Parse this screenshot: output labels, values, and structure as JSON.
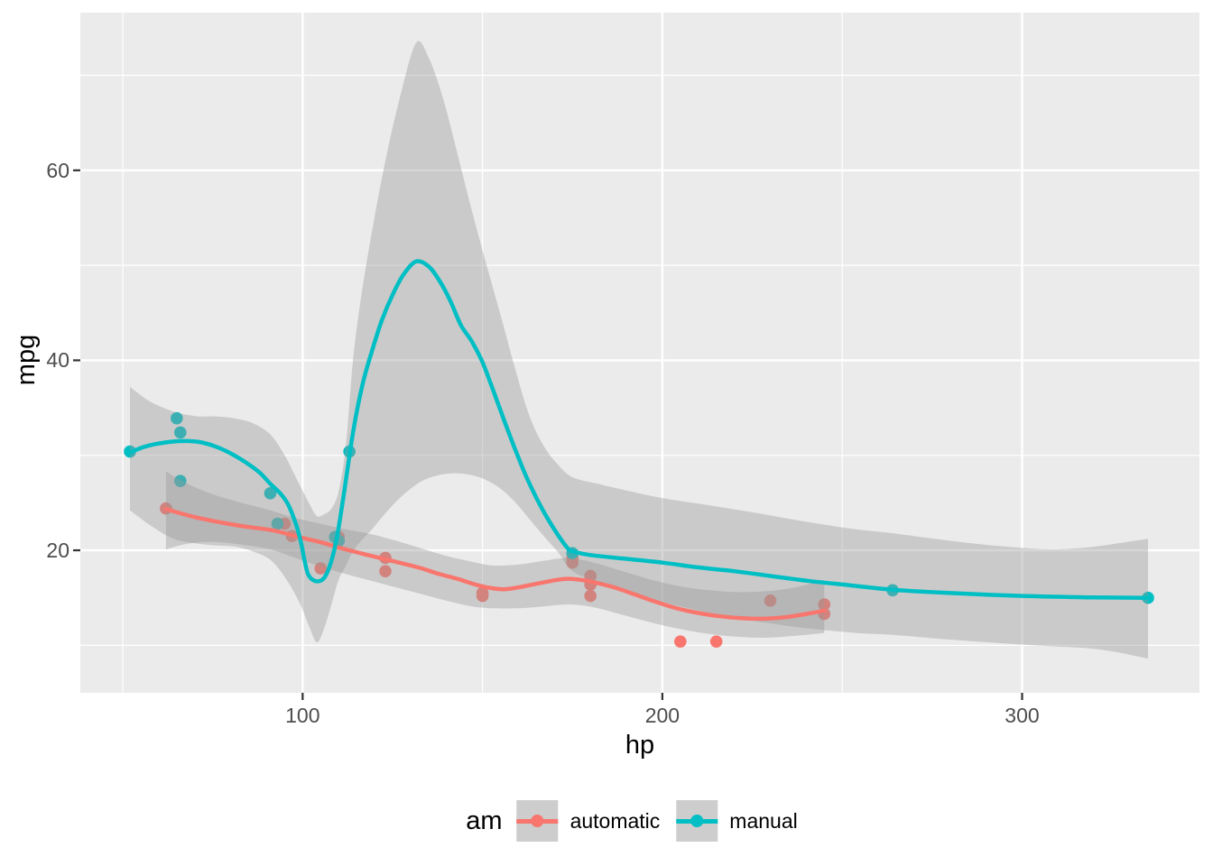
{
  "chart_data": {
    "type": "scatter",
    "title": "",
    "xlabel": "hp",
    "ylabel": "mpg",
    "legend_title": "am",
    "x_domain": [
      38.2,
      349.3
    ],
    "y_domain": [
      5.0,
      76.6
    ],
    "x_ticks": [
      100,
      200,
      300
    ],
    "x_minor_ticks": [
      50,
      150,
      250
    ],
    "y_ticks": [
      20,
      40,
      60
    ],
    "y_minor_ticks": [
      10,
      30,
      50,
      70
    ],
    "grid": "on",
    "legend_position": "bottom",
    "style": {
      "panel_bg": "#EBEBEB",
      "grid_color": "#FFFFFF",
      "ribbon_fill": "#999999",
      "ribbon_opacity": 0.4,
      "tick_mark_color": "#333333",
      "tick_text_color": "#4D4D4D",
      "title_text_color": "#000000",
      "legend_key_bg": "#CDCDCD"
    },
    "series": [
      {
        "name": "automatic",
        "color": "#F8766D",
        "points": [
          [
            62,
            24.4
          ],
          [
            95,
            22.8
          ],
          [
            97,
            21.5
          ],
          [
            105,
            18.1
          ],
          [
            110,
            21.4
          ],
          [
            123,
            19.2
          ],
          [
            123,
            17.8
          ],
          [
            150,
            15.5
          ],
          [
            150,
            15.2
          ],
          [
            175,
            18.7
          ],
          [
            175,
            19.2
          ],
          [
            180,
            16.4
          ],
          [
            180,
            17.3
          ],
          [
            180,
            15.2
          ],
          [
            205,
            10.4
          ],
          [
            215,
            10.4
          ],
          [
            230,
            14.7
          ],
          [
            245,
            14.3
          ],
          [
            245,
            13.3
          ]
        ],
        "smooth_line": [
          [
            62,
            24.35
          ],
          [
            66,
            23.9
          ],
          [
            70,
            23.5
          ],
          [
            75,
            23.1
          ],
          [
            80,
            22.75
          ],
          [
            85,
            22.45
          ],
          [
            91,
            22.15
          ],
          [
            95,
            21.8
          ],
          [
            100,
            21.3
          ],
          [
            105,
            20.85
          ],
          [
            110,
            20.3
          ],
          [
            116,
            19.7
          ],
          [
            123,
            19.05
          ],
          [
            128,
            18.6
          ],
          [
            133,
            18.1
          ],
          [
            138,
            17.5
          ],
          [
            143,
            17.0
          ],
          [
            148,
            16.4
          ],
          [
            152,
            16.05
          ],
          [
            156,
            15.9
          ],
          [
            160,
            16.1
          ],
          [
            164,
            16.4
          ],
          [
            168,
            16.7
          ],
          [
            171,
            16.9
          ],
          [
            174,
            17.0
          ],
          [
            178,
            16.85
          ],
          [
            182,
            16.55
          ],
          [
            187,
            16.05
          ],
          [
            192,
            15.4
          ],
          [
            198,
            14.6
          ],
          [
            204,
            13.9
          ],
          [
            210,
            13.4
          ],
          [
            216,
            13.05
          ],
          [
            222,
            12.85
          ],
          [
            228,
            12.8
          ],
          [
            234,
            12.95
          ],
          [
            240,
            13.3
          ],
          [
            245,
            13.65
          ]
        ],
        "ci_ribbon": [
          [
            62,
            20.1,
            28.3
          ],
          [
            68,
            20.7,
            27.0
          ],
          [
            75,
            20.9,
            25.9
          ],
          [
            83,
            20.6,
            25.0
          ],
          [
            91,
            20.1,
            24.2
          ],
          [
            98,
            19.2,
            23.4
          ],
          [
            105,
            18.3,
            22.8
          ],
          [
            112,
            17.5,
            22.2
          ],
          [
            119,
            16.8,
            21.7
          ],
          [
            126,
            16.1,
            21.0
          ],
          [
            133,
            15.4,
            20.2
          ],
          [
            140,
            14.7,
            19.4
          ],
          [
            147,
            14.1,
            18.8
          ],
          [
            153,
            13.9,
            18.4
          ],
          [
            160,
            13.9,
            18.5
          ],
          [
            167,
            14.1,
            18.9
          ],
          [
            174,
            14.3,
            19.2
          ],
          [
            181,
            14.0,
            18.7
          ],
          [
            189,
            13.2,
            17.8
          ],
          [
            197,
            12.4,
            16.9
          ],
          [
            205,
            11.7,
            16.2
          ],
          [
            213,
            11.2,
            15.8
          ],
          [
            221,
            10.9,
            15.6
          ],
          [
            229,
            10.8,
            15.7
          ],
          [
            237,
            11.0,
            16.1
          ],
          [
            245,
            11.3,
            16.9
          ]
        ]
      },
      {
        "name": "manual",
        "color": "#00BFC4",
        "points": [
          [
            52,
            30.4
          ],
          [
            65,
            33.9
          ],
          [
            66,
            32.4
          ],
          [
            66,
            27.3
          ],
          [
            91,
            26.0
          ],
          [
            93,
            22.8
          ],
          [
            109,
            21.4
          ],
          [
            110,
            21.0
          ],
          [
            110,
            21.0
          ],
          [
            113,
            30.4
          ],
          [
            175,
            19.7
          ],
          [
            264,
            15.8
          ],
          [
            335,
            15.0
          ]
        ],
        "smooth_line": [
          [
            52,
            30.3
          ],
          [
            56,
            30.9
          ],
          [
            60,
            31.25
          ],
          [
            64,
            31.45
          ],
          [
            68,
            31.5
          ],
          [
            72,
            31.35
          ],
          [
            76,
            30.9
          ],
          [
            80,
            30.2
          ],
          [
            84,
            29.3
          ],
          [
            88,
            28.2
          ],
          [
            91,
            27.0
          ],
          [
            94,
            25.9
          ],
          [
            96,
            24.8
          ],
          [
            98,
            22.9
          ],
          [
            99.5,
            20.9
          ],
          [
            100.5,
            19.0
          ],
          [
            101.5,
            17.5
          ],
          [
            103,
            16.85
          ],
          [
            105,
            16.8
          ],
          [
            106.5,
            17.4
          ],
          [
            108,
            18.9
          ],
          [
            109.5,
            21.3
          ],
          [
            111,
            24.8
          ],
          [
            112.5,
            28.6
          ],
          [
            113.5,
            31.2
          ],
          [
            115,
            34.5
          ],
          [
            117,
            38.0
          ],
          [
            119.2,
            40.9
          ],
          [
            122,
            44.2
          ],
          [
            125,
            46.9
          ],
          [
            128,
            49.0
          ],
          [
            131.5,
            50.4
          ],
          [
            135,
            49.9
          ],
          [
            138,
            48.4
          ],
          [
            141,
            46.3
          ],
          [
            144,
            43.7
          ],
          [
            147,
            42.0
          ],
          [
            150,
            39.8
          ],
          [
            153,
            36.8
          ],
          [
            156,
            33.7
          ],
          [
            159,
            30.7
          ],
          [
            162,
            27.9
          ],
          [
            165,
            25.5
          ],
          [
            168,
            23.4
          ],
          [
            171,
            21.6
          ],
          [
            173.5,
            20.3
          ],
          [
            175,
            19.9
          ],
          [
            180,
            19.5
          ],
          [
            190,
            19.1
          ],
          [
            200,
            18.7
          ],
          [
            210,
            18.2
          ],
          [
            220,
            17.8
          ],
          [
            230,
            17.3
          ],
          [
            240,
            16.8
          ],
          [
            250,
            16.4
          ],
          [
            264,
            15.85
          ],
          [
            280,
            15.5
          ],
          [
            300,
            15.2
          ],
          [
            318,
            15.05
          ],
          [
            335,
            15.0
          ]
        ],
        "ci_ribbon": [
          [
            52,
            24.2,
            37.2
          ],
          [
            57,
            22.8,
            35.8
          ],
          [
            62,
            21.6,
            34.9
          ],
          [
            66,
            21.0,
            34.4
          ],
          [
            71,
            20.7,
            34.1
          ],
          [
            76,
            20.5,
            34.1
          ],
          [
            81,
            20.4,
            33.9
          ],
          [
            86,
            19.9,
            33.4
          ],
          [
            91,
            19.0,
            32.2
          ],
          [
            95,
            17.2,
            30.0
          ],
          [
            99,
            14.6,
            27.0
          ],
          [
            102,
            11.8,
            24.8
          ],
          [
            104,
            10.3,
            23.6
          ],
          [
            106,
            11.8,
            23.8
          ],
          [
            108,
            14.3,
            24.4
          ],
          [
            110,
            16.9,
            26.2
          ],
          [
            112,
            18.4,
            31.0
          ],
          [
            114,
            19.9,
            40.0
          ],
          [
            116,
            20.9,
            46.0
          ],
          [
            119,
            22.1,
            53.0
          ],
          [
            123,
            23.9,
            61.0
          ],
          [
            127,
            25.5,
            67.6
          ],
          [
            131.5,
            26.9,
            73.4
          ],
          [
            135,
            27.6,
            71.9
          ],
          [
            139,
            28.0,
            67.6
          ],
          [
            143,
            28.1,
            61.8
          ],
          [
            147,
            27.9,
            55.8
          ],
          [
            151,
            27.4,
            50.2
          ],
          [
            155,
            26.5,
            44.8
          ],
          [
            159,
            25.1,
            39.2
          ],
          [
            163,
            23.3,
            34.2
          ],
          [
            167,
            21.5,
            31.0
          ],
          [
            171,
            19.8,
            29.0
          ],
          [
            175,
            17.8,
            27.7
          ],
          [
            182,
            16.7,
            27.0
          ],
          [
            190,
            15.7,
            26.3
          ],
          [
            200,
            14.6,
            25.5
          ],
          [
            212,
            13.5,
            24.8
          ],
          [
            225,
            12.6,
            24.0
          ],
          [
            240,
            11.8,
            23.0
          ],
          [
            254,
            11.3,
            22.2
          ],
          [
            264,
            11.1,
            21.8
          ],
          [
            280,
            10.6,
            21.0
          ],
          [
            295,
            10.2,
            20.4
          ],
          [
            308,
            9.9,
            20.1
          ],
          [
            318,
            9.7,
            20.3
          ],
          [
            326,
            9.3,
            20.7
          ],
          [
            335,
            8.6,
            21.2
          ]
        ]
      }
    ]
  }
}
